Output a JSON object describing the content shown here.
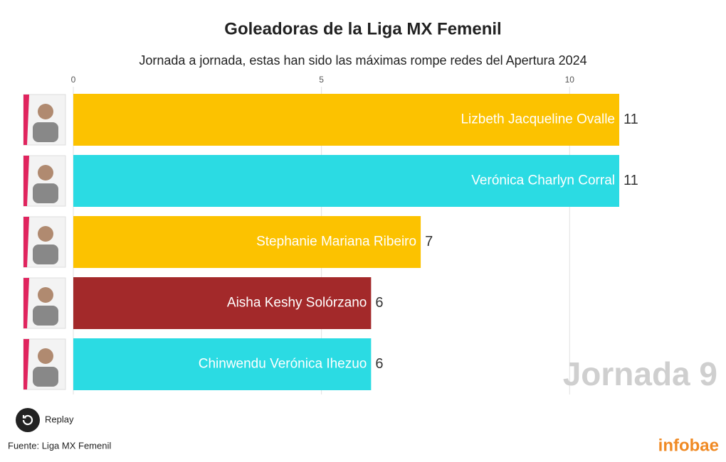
{
  "chart_data": {
    "type": "bar",
    "orientation": "horizontal",
    "title": "Goleadoras de la Liga MX Femenil",
    "subtitle": "Jornada a jornada, estas han sido las máximas rompe redes del Apertura 2024",
    "categories": [
      "Lizbeth Jacqueline Ovalle",
      "Verónica Charlyn Corral",
      "Stephanie Mariana Ribeiro",
      "Aisha Keshy Solórzano",
      "Chinwendu Verónica Ihezuo"
    ],
    "values": [
      11,
      11,
      7,
      6,
      6
    ],
    "colors": [
      "#fcc200",
      "#2bdbe3",
      "#fcc200",
      "#a3292a",
      "#2bdbe3"
    ],
    "xlim": [
      0,
      11
    ],
    "xticks": [
      0,
      5,
      10
    ],
    "grid": true,
    "period_label": "Jornada 9"
  },
  "controls": {
    "replay": "Replay"
  },
  "source": "Fuente: Liga MX Femenil",
  "brand": "infobae"
}
